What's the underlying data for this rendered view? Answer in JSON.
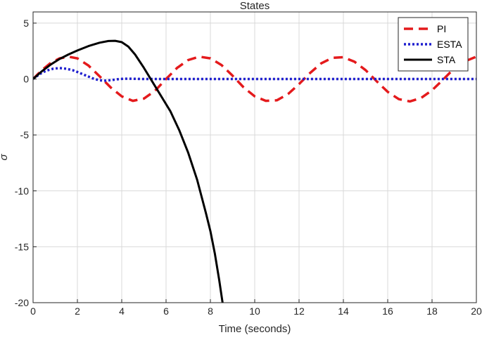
{
  "chart_data": {
    "type": "line",
    "title": "States",
    "xlabel": "Time (seconds)",
    "ylabel": "σ",
    "xlim": [
      0,
      20
    ],
    "ylim": [
      -20,
      6
    ],
    "xticks": [
      0,
      2,
      4,
      6,
      8,
      10,
      12,
      14,
      16,
      18,
      20
    ],
    "yticks": [
      -20,
      -15,
      -10,
      -5,
      0,
      5
    ],
    "ytick_labels": [
      "-20",
      "-15",
      "-10",
      "-5",
      "0",
      "5"
    ],
    "grid": true,
    "legend_position": "top-right",
    "series": [
      {
        "name": "PI",
        "color": "#e41a1c",
        "style": "dashed",
        "x": [
          0,
          0.4,
          0.8,
          1.2,
          1.6,
          2.0,
          2.5,
          3.0,
          3.5,
          4.0,
          4.5,
          5.0,
          5.5,
          6.0,
          6.5,
          7.0,
          7.5,
          8.0,
          8.5,
          9.0,
          9.5,
          10.0,
          10.5,
          11.0,
          11.5,
          12.0,
          12.5,
          13.0,
          13.5,
          14.0,
          14.5,
          15.0,
          15.5,
          16.0,
          16.5,
          17.0,
          17.5,
          18.0,
          18.5,
          19.0,
          19.5,
          20.0
        ],
        "y": [
          0,
          0.8,
          1.45,
          1.85,
          2.0,
          1.85,
          1.2,
          0.25,
          -0.75,
          -1.55,
          -1.95,
          -1.75,
          -1.05,
          0.0,
          1.0,
          1.7,
          2.0,
          1.85,
          1.25,
          0.3,
          -0.75,
          -1.55,
          -1.95,
          -1.9,
          -1.35,
          -0.45,
          0.55,
          1.4,
          1.9,
          1.95,
          1.55,
          0.8,
          -0.2,
          -1.15,
          -1.8,
          -2.0,
          -1.7,
          -1.0,
          -0.05,
          0.95,
          1.6,
          2.0
        ]
      },
      {
        "name": "ESTA",
        "color": "#1f1fcf",
        "style": "dotted",
        "x": [
          0,
          0.3,
          0.6,
          0.9,
          1.2,
          1.5,
          1.8,
          2.1,
          2.4,
          2.7,
          3.0,
          3.3,
          3.6,
          3.9,
          4.2,
          4.5,
          5.0,
          6.0,
          8.0,
          10.0,
          12.0,
          14.0,
          16.0,
          18.0,
          20.0
        ],
        "y": [
          0,
          0.45,
          0.75,
          0.92,
          0.98,
          0.92,
          0.78,
          0.55,
          0.3,
          0.05,
          -0.12,
          -0.15,
          -0.08,
          0.0,
          0.03,
          0.02,
          0.0,
          0.0,
          0.0,
          0.0,
          0.0,
          0.0,
          0.0,
          0.0,
          0.0
        ]
      },
      {
        "name": "STA",
        "color": "#000000",
        "style": "solid",
        "x": [
          0,
          0.4,
          0.8,
          1.2,
          1.6,
          2.0,
          2.5,
          3.0,
          3.4,
          3.7,
          4.0,
          4.3,
          4.6,
          5.0,
          5.4,
          5.8,
          6.2,
          6.6,
          7.0,
          7.4,
          7.8,
          8.0,
          8.2,
          8.4,
          8.55
        ],
        "y": [
          0,
          0.7,
          1.3,
          1.8,
          2.2,
          2.55,
          2.95,
          3.25,
          3.4,
          3.42,
          3.3,
          2.9,
          2.2,
          1.0,
          -0.3,
          -1.6,
          -2.9,
          -4.6,
          -6.6,
          -9.0,
          -12.0,
          -13.6,
          -15.6,
          -18.0,
          -20.0
        ]
      }
    ]
  }
}
